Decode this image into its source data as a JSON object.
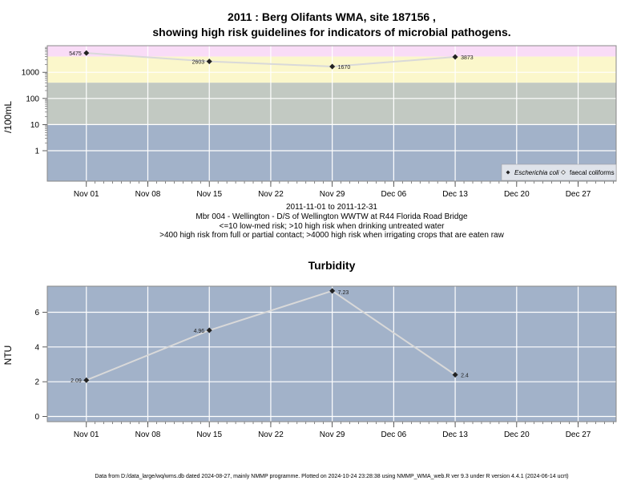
{
  "page": {
    "title_line1": "2011 : Berg Olifants WMA, site 187156 ,",
    "title_line2": "showing high risk guidelines for indicators of microbial pathogens.",
    "caption_lines": [
      "2011-11-01 to 2011-12-31",
      "Mbr 004 - Wellington - D/S of Wellington WWTW at R44 Florida Road Bridge",
      "<=10 low-med risk; >10 high risk when drinking untreated water",
      ">400 high risk from full or partial contact; >4000 high risk when irrigating crops that are eaten raw"
    ],
    "footer": "Data from D:/data_large/wq/wms.db dated 2024-08-27, mainly NMMP programme. Plotted on 2024-10-24 23:28:38 using NMMP_WMA_web.R ver 9.3 under R version 4.4.1 (2024-06-14 ucrt)"
  },
  "colors": {
    "band_low": "#a2b2c9",
    "band_mid": "#c2c9c2",
    "band_high": "#fbf7cb",
    "band_top": "#f9dcf7",
    "panel_bg": "#a2b2c9",
    "line": "#d9d9d9",
    "grid": "#ffffff",
    "point": "#222222"
  },
  "chart_data": [
    {
      "type": "line",
      "title": "",
      "ylabel": "/100mL",
      "yscale": "log",
      "x_ticks": [
        "Nov 01",
        "Nov 08",
        "Nov 15",
        "Nov 22",
        "Nov 29",
        "Dec 06",
        "Dec 13",
        "Dec 20",
        "Dec 27"
      ],
      "y_ticks": [
        "1",
        "10",
        "100",
        "1000"
      ],
      "risk_bands": [
        10,
        400,
        4000
      ],
      "legend_position": "bottom-right",
      "series": [
        {
          "name": "Escherichia coli",
          "x": [
            "2011-11-01",
            "2011-11-15",
            "2011-11-29",
            "2011-12-13"
          ],
          "values": [
            5475,
            2603,
            1670,
            3873
          ],
          "labels": [
            "5475",
            "2603",
            "1670",
            "3873"
          ]
        }
      ],
      "legend": [
        "Escherichia coli",
        "faecal coliforms"
      ]
    },
    {
      "type": "line",
      "title": "Turbidity",
      "ylabel": "NTU",
      "x_ticks": [
        "Nov 01",
        "Nov 08",
        "Nov 15",
        "Nov 22",
        "Nov 29",
        "Dec 06",
        "Dec 13",
        "Dec 20",
        "Dec 27"
      ],
      "y_ticks": [
        "0",
        "2",
        "4",
        "6"
      ],
      "ylim": [
        -0.3,
        7.5
      ],
      "series": [
        {
          "x": [
            "2011-11-01",
            "2011-11-15",
            "2011-11-29",
            "2011-12-13"
          ],
          "values": [
            2.09,
            4.96,
            7.23,
            2.4
          ],
          "labels": [
            "2.09",
            "4.96",
            "7.23",
            "2.4"
          ]
        }
      ]
    }
  ]
}
